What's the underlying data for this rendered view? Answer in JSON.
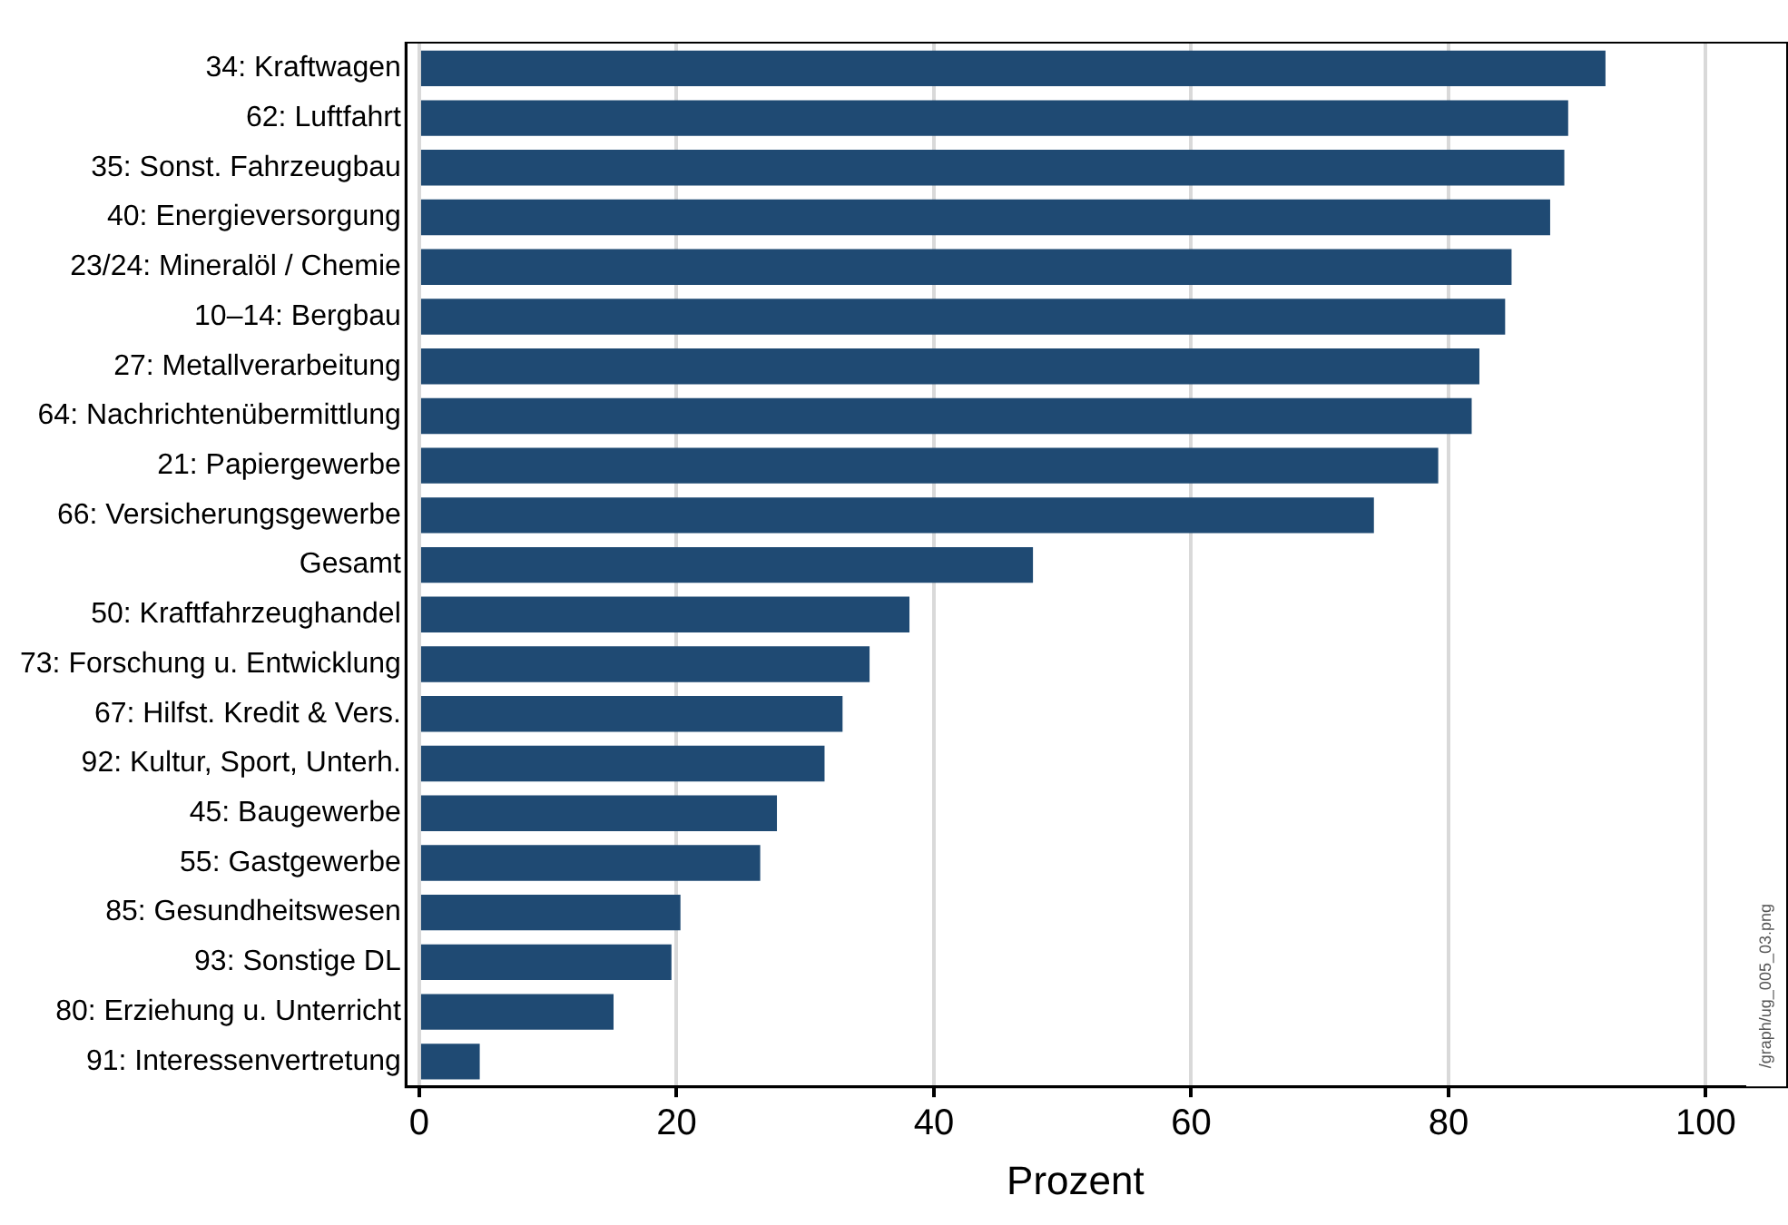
{
  "chart_data": {
    "type": "bar",
    "orientation": "horizontal",
    "xlabel": "Prozent",
    "categories": [
      "34: Kraftwagen",
      "62: Luftfahrt",
      "35: Sonst. Fahrzeugbau",
      "40: Energieversorgung",
      "23/24: Mineralöl / Chemie",
      "10–14: Bergbau",
      "27: Metallverarbeitung",
      "64: Nachrichtenübermittlung",
      "21: Papiergewerbe",
      "66: Versicherungsgewerbe",
      "Gesamt",
      "50: Kraftfahrzeughandel",
      "73: Forschung u. Entwicklung",
      "67: Hilfst. Kredit & Vers.",
      "92: Kultur, Sport, Unterh.",
      "45: Baugewerbe",
      "55: Gastgewerbe",
      "85: Gesundheitswesen",
      "93: Sonstige DL",
      "80: Erziehung u. Unterricht",
      "91: Interessenvertretung"
    ],
    "values": [
      92.2,
      89.3,
      89.0,
      87.9,
      84.9,
      84.4,
      82.4,
      81.8,
      79.2,
      74.2,
      47.7,
      38.1,
      35.0,
      32.9,
      31.5,
      27.8,
      26.5,
      20.3,
      19.6,
      15.1,
      4.7
    ],
    "color": "#1f4a73",
    "xlim": [
      -1,
      103
    ],
    "xticks": [
      0,
      20,
      40,
      60,
      80,
      100
    ],
    "grid": "x",
    "annotations": [
      "/graph/ug_005_03.png"
    ]
  }
}
